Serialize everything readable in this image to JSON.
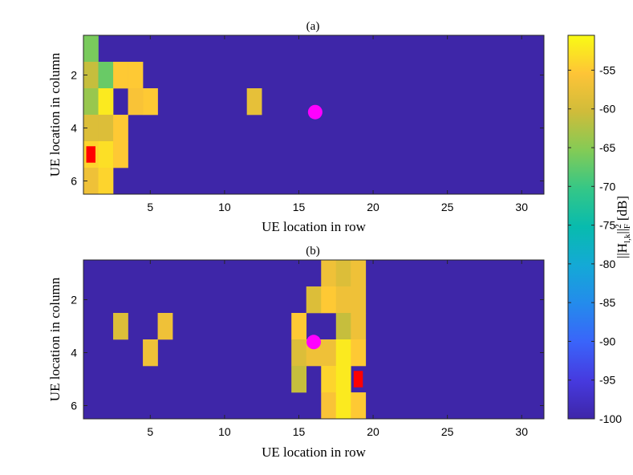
{
  "chart_data": {
    "type": "heatmap",
    "colorbar": {
      "label": "||H_{l,k}||_F^2 [dB]",
      "label_base": "||H",
      "label_sub": "l,k",
      "label_norm": "||",
      "label_norm_sub": "F",
      "label_norm_sup": "2",
      "label_unit": "[dB]",
      "min": -100,
      "max": -50.5,
      "ticks": [
        -55,
        -60,
        -65,
        -70,
        -75,
        -80,
        -85,
        -90,
        -95,
        -100
      ],
      "tick_labels": [
        "-55",
        "-60",
        "-65",
        "-70",
        "-75",
        "-80",
        "-85",
        "-90",
        "-95",
        "-100"
      ],
      "colormap": "parula",
      "background_color": "#3e26a8",
      "highlight_color": "#ff0000",
      "marker_color": "#ff00ff"
    },
    "panels": [
      {
        "title": "(a)",
        "xlabel": "UE location in row",
        "ylabel": "UE location in column",
        "xlim": [
          0.5,
          31.5
        ],
        "ylim": [
          0.5,
          6.5
        ],
        "xticks": [
          5,
          10,
          15,
          20,
          25,
          30
        ],
        "yticks": [
          2,
          4,
          6
        ],
        "background_value": -100,
        "cells": [
          {
            "x": 1,
            "y": 1,
            "v": -66
          },
          {
            "x": 1,
            "y": 2,
            "v": -61
          },
          {
            "x": 1,
            "y": 3,
            "v": -64
          },
          {
            "x": 1,
            "y": 4,
            "v": -59
          },
          {
            "x": 1,
            "y": 5,
            "v": -54
          },
          {
            "x": 1,
            "y": 6,
            "v": -57
          },
          {
            "x": 2,
            "y": 2,
            "v": -67
          },
          {
            "x": 2,
            "y": 3,
            "v": -52
          },
          {
            "x": 2,
            "y": 4,
            "v": -59
          },
          {
            "x": 2,
            "y": 5,
            "v": -53
          },
          {
            "x": 2,
            "y": 6,
            "v": -54
          },
          {
            "x": 3,
            "y": 2,
            "v": -55
          },
          {
            "x": 3,
            "y": 4,
            "v": -55
          },
          {
            "x": 3,
            "y": 5,
            "v": -55
          },
          {
            "x": 4,
            "y": 2,
            "v": -55
          },
          {
            "x": 4,
            "y": 3,
            "v": -56
          },
          {
            "x": 5,
            "y": 3,
            "v": -55
          },
          {
            "x": 12,
            "y": 3,
            "v": -58
          }
        ],
        "highlights": [
          {
            "x": 1,
            "y": 5
          }
        ],
        "marker": {
          "x": 16.1,
          "y": 3.4
        }
      },
      {
        "title": "(b)",
        "xlabel": "UE location in row",
        "ylabel": "UE location in column",
        "xlim": [
          0.5,
          31.5
        ],
        "ylim": [
          0.5,
          6.5
        ],
        "xticks": [
          5,
          10,
          15,
          20,
          25,
          30
        ],
        "yticks": [
          2,
          4,
          6
        ],
        "background_value": -100,
        "cells": [
          {
            "x": 3,
            "y": 3,
            "v": -59
          },
          {
            "x": 5,
            "y": 4,
            "v": -57
          },
          {
            "x": 6,
            "y": 3,
            "v": -57
          },
          {
            "x": 15,
            "y": 3,
            "v": -55
          },
          {
            "x": 15,
            "y": 4,
            "v": -59
          },
          {
            "x": 15,
            "y": 5,
            "v": -61
          },
          {
            "x": 16,
            "y": 2,
            "v": -59
          },
          {
            "x": 16,
            "y": 4,
            "v": -57
          },
          {
            "x": 17,
            "y": 1,
            "v": -57
          },
          {
            "x": 17,
            "y": 2,
            "v": -55
          },
          {
            "x": 17,
            "y": 4,
            "v": -57
          },
          {
            "x": 17,
            "y": 5,
            "v": -54
          },
          {
            "x": 17,
            "y": 6,
            "v": -56
          },
          {
            "x": 18,
            "y": 1,
            "v": -59
          },
          {
            "x": 18,
            "y": 2,
            "v": -57
          },
          {
            "x": 18,
            "y": 3,
            "v": -61
          },
          {
            "x": 18,
            "y": 4,
            "v": -52
          },
          {
            "x": 18,
            "y": 5,
            "v": -52
          },
          {
            "x": 18,
            "y": 6,
            "v": -52
          },
          {
            "x": 19,
            "y": 1,
            "v": -57
          },
          {
            "x": 19,
            "y": 2,
            "v": -57
          },
          {
            "x": 19,
            "y": 3,
            "v": -57
          },
          {
            "x": 19,
            "y": 4,
            "v": -55
          },
          {
            "x": 19,
            "y": 6,
            "v": -55
          }
        ],
        "highlights": [
          {
            "x": 19,
            "y": 5
          }
        ],
        "marker": {
          "x": 16,
          "y": 3.6
        }
      }
    ]
  }
}
